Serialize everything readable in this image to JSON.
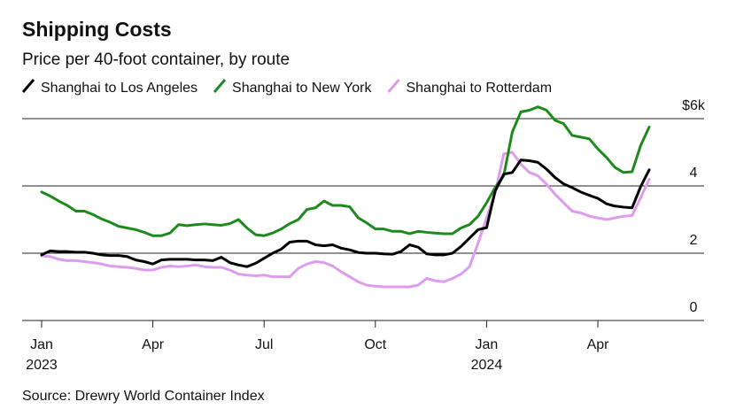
{
  "chart_data": {
    "type": "line",
    "title": "Shipping Costs",
    "subtitle": "Price per 40-foot container, by route",
    "source": "Source: Drewry World Container Index",
    "categories": [
      "Jan",
      null,
      null,
      null,
      null,
      null,
      null,
      null,
      null,
      null,
      null,
      null,
      null,
      "Apr",
      null,
      null,
      null,
      null,
      null,
      null,
      null,
      null,
      null,
      null,
      null,
      null,
      "Jul",
      null,
      null,
      null,
      null,
      null,
      null,
      null,
      null,
      null,
      null,
      null,
      null,
      "Oct",
      null,
      null,
      null,
      null,
      null,
      null,
      null,
      null,
      null,
      null,
      null,
      null,
      "Jan",
      null,
      null,
      null,
      null,
      null,
      null,
      null,
      null,
      null,
      null,
      null,
      null,
      "Apr",
      null,
      null,
      null,
      null,
      null,
      null
    ],
    "x_groups": [
      {
        "label": "2023",
        "start": 0
      },
      {
        "label": "2024",
        "start": 52
      }
    ],
    "series": [
      {
        "name": "Shanghai to Los Angeles",
        "color": "#000000",
        "values": [
          1.95,
          2.07,
          2.05,
          2.05,
          2.03,
          2.03,
          2.0,
          1.95,
          1.93,
          1.93,
          1.9,
          1.8,
          1.75,
          1.68,
          1.8,
          1.82,
          1.82,
          1.82,
          1.8,
          1.8,
          1.78,
          1.88,
          1.72,
          1.65,
          1.6,
          1.7,
          1.85,
          2.0,
          2.12,
          2.33,
          2.36,
          2.36,
          2.25,
          2.22,
          2.25,
          2.15,
          2.1,
          2.02,
          2.0,
          2.0,
          1.98,
          1.97,
          2.05,
          2.25,
          2.18,
          1.98,
          1.95,
          1.95,
          2.0,
          2.2,
          2.45,
          2.7,
          2.76,
          3.85,
          4.35,
          4.4,
          4.77,
          4.75,
          4.7,
          4.5,
          4.25,
          4.06,
          3.95,
          3.82,
          3.72,
          3.63,
          3.47,
          3.4,
          3.37,
          3.35,
          3.98,
          4.48
        ]
      },
      {
        "name": "Shanghai to New York",
        "color": "#1e8a1e",
        "values": [
          3.82,
          3.7,
          3.55,
          3.42,
          3.25,
          3.25,
          3.15,
          3.02,
          2.92,
          2.8,
          2.75,
          2.7,
          2.62,
          2.52,
          2.52,
          2.6,
          2.85,
          2.82,
          2.85,
          2.87,
          2.85,
          2.83,
          2.88,
          3.0,
          2.75,
          2.55,
          2.52,
          2.6,
          2.72,
          2.88,
          3.0,
          3.3,
          3.35,
          3.55,
          3.42,
          3.42,
          3.38,
          3.05,
          2.9,
          2.72,
          2.72,
          2.65,
          2.65,
          2.58,
          2.65,
          2.62,
          2.6,
          2.58,
          2.58,
          2.75,
          2.85,
          3.1,
          3.5,
          3.95,
          4.3,
          5.6,
          6.2,
          6.25,
          6.35,
          6.25,
          5.95,
          5.85,
          5.5,
          5.45,
          5.4,
          5.1,
          4.85,
          4.55,
          4.4,
          4.42,
          5.2,
          5.75
        ]
      },
      {
        "name": "Shanghai to Rotterdam",
        "color": "#dd9ced",
        "values": [
          1.92,
          1.9,
          1.82,
          1.78,
          1.78,
          1.75,
          1.72,
          1.68,
          1.62,
          1.6,
          1.58,
          1.55,
          1.5,
          1.5,
          1.58,
          1.62,
          1.6,
          1.62,
          1.65,
          1.6,
          1.58,
          1.58,
          1.5,
          1.38,
          1.35,
          1.33,
          1.35,
          1.3,
          1.3,
          1.3,
          1.55,
          1.68,
          1.75,
          1.72,
          1.62,
          1.45,
          1.3,
          1.15,
          1.05,
          1.02,
          1.0,
          1.0,
          1.0,
          1.0,
          1.05,
          1.25,
          1.18,
          1.15,
          1.25,
          1.38,
          1.6,
          2.3,
          3.05,
          3.8,
          4.95,
          5.0,
          4.65,
          4.4,
          4.3,
          4.05,
          3.75,
          3.5,
          3.25,
          3.2,
          3.1,
          3.05,
          3.0,
          3.05,
          3.1,
          3.12,
          3.65,
          4.2
        ]
      }
    ],
    "ylim": [
      0,
      6.5
    ],
    "yticks": [
      {
        "value": 6,
        "label": "$6k"
      },
      4,
      2,
      0
    ],
    "grid": true
  }
}
